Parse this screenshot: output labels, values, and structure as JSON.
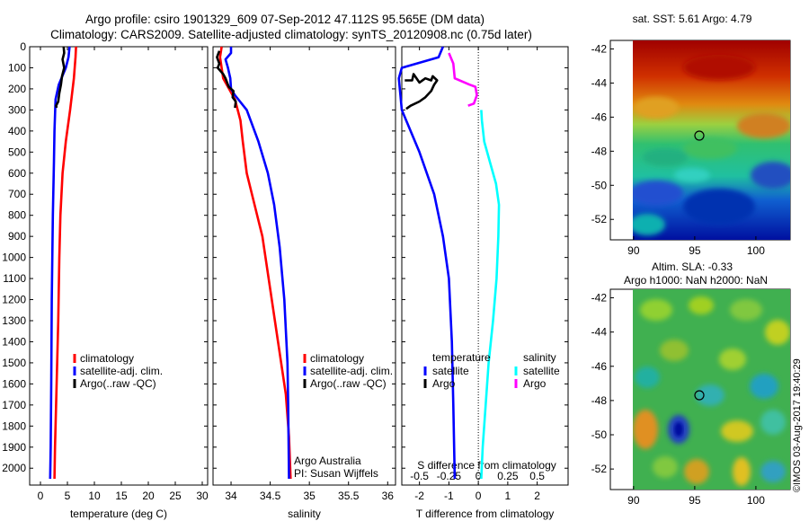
{
  "title_line1": "Argo profile: csiro 1901329_609 07-Sep-2012 47.112S 95.565E (DM data)",
  "title_line2": "Climatology: CARS2009. Satellite-adjusted climatology: synTS_20120908.nc (0.75d later)",
  "colors": {
    "climatology": "#ff0000",
    "satellite": "#0000ff",
    "argo": "#000000",
    "sat_salinity": "#00ffff",
    "argo_salinity": "#ff00ff"
  },
  "chart_data": [
    {
      "type": "line",
      "xlabel": "temperature (deg C)",
      "xticks": [
        "0",
        "5",
        "10",
        "15",
        "20",
        "25",
        "30"
      ],
      "xlim": [
        -2,
        31
      ],
      "ylim": [
        0,
        2080
      ],
      "yticks": [
        "0",
        "100",
        "200",
        "300",
        "400",
        "500",
        "600",
        "700",
        "800",
        "900",
        "1000",
        "1100",
        "1200",
        "1300",
        "1400",
        "1500",
        "1600",
        "1700",
        "1800",
        "1900",
        "2000"
      ],
      "legend": [
        {
          "label": "climatology",
          "color": "#ff0000"
        },
        {
          "label": "satellite-adj. clim.",
          "color": "#0000ff"
        },
        {
          "label": "Argo(..raw -QC)",
          "color": "#000000"
        }
      ],
      "series": [
        {
          "name": "climatology",
          "color": "#ff0000",
          "points": [
            [
              6.6,
              0
            ],
            [
              6.5,
              50
            ],
            [
              6.2,
              150
            ],
            [
              5.5,
              300
            ],
            [
              4.7,
              450
            ],
            [
              4.1,
              600
            ],
            [
              3.7,
              800
            ],
            [
              3.5,
              1000
            ],
            [
              3.3,
              1300
            ],
            [
              3.0,
              1600
            ],
            [
              2.7,
              1900
            ],
            [
              2.6,
              2050
            ]
          ]
        },
        {
          "name": "satellite-adj. clim.",
          "color": "#0000ff",
          "points": [
            [
              5.4,
              0
            ],
            [
              5.2,
              50
            ],
            [
              4.7,
              100
            ],
            [
              3.4,
              180
            ],
            [
              2.8,
              250
            ],
            [
              2.6,
              400
            ],
            [
              2.5,
              550
            ],
            [
              2.3,
              800
            ],
            [
              2.1,
              1200
            ],
            [
              2.0,
              1600
            ],
            [
              1.9,
              1900
            ],
            [
              1.8,
              2050
            ]
          ]
        },
        {
          "name": "Argo(..raw -QC)",
          "color": "#000000",
          "points": [
            [
              4.3,
              0
            ],
            [
              4.4,
              30
            ],
            [
              4.1,
              60
            ],
            [
              4.4,
              100
            ],
            [
              4.0,
              140
            ],
            [
              3.8,
              180
            ],
            [
              3.5,
              220
            ],
            [
              3.3,
              260
            ],
            [
              2.9,
              280
            ],
            [
              3.0,
              290
            ]
          ]
        }
      ]
    },
    {
      "type": "line",
      "xlabel": "salinity",
      "xticks": [
        "34",
        "34.5",
        "35",
        "35.5",
        "36"
      ],
      "xlim": [
        33.77,
        36.1
      ],
      "ylim": [
        0,
        2080
      ],
      "legend": [
        {
          "label": "climatology",
          "color": "#ff0000"
        },
        {
          "label": "satellite-adj. clim.",
          "color": "#0000ff"
        },
        {
          "label": "Argo(..raw -QC)",
          "color": "#000000"
        }
      ],
      "annotation_line1": "Argo Australia",
      "annotation_line2": "PI: Susan Wijffels",
      "series": [
        {
          "name": "climatology",
          "color": "#ff0000",
          "points": [
            [
              33.88,
              0
            ],
            [
              33.86,
              50
            ],
            [
              33.9,
              150
            ],
            [
              34.05,
              250
            ],
            [
              34.12,
              350
            ],
            [
              34.15,
              450
            ],
            [
              34.2,
              600
            ],
            [
              34.3,
              750
            ],
            [
              34.4,
              900
            ],
            [
              34.5,
              1150
            ],
            [
              34.6,
              1400
            ],
            [
              34.7,
              1650
            ],
            [
              34.74,
              1850
            ],
            [
              34.76,
              2050
            ]
          ]
        },
        {
          "name": "satellite-adj. clim.",
          "color": "#0000ff",
          "points": [
            [
              34.0,
              0
            ],
            [
              34.0,
              30
            ],
            [
              33.93,
              60
            ],
            [
              33.96,
              100
            ],
            [
              33.99,
              150
            ],
            [
              34.0,
              200
            ],
            [
              34.05,
              230
            ],
            [
              34.2,
              300
            ],
            [
              34.35,
              450
            ],
            [
              34.47,
              600
            ],
            [
              34.55,
              750
            ],
            [
              34.62,
              950
            ],
            [
              34.68,
              1200
            ],
            [
              34.72,
              1500
            ],
            [
              34.73,
              1700
            ],
            [
              34.74,
              2050
            ]
          ]
        },
        {
          "name": "Argo(..raw -QC)",
          "color": "#000000",
          "points": [
            [
              33.85,
              20
            ],
            [
              33.82,
              50
            ],
            [
              33.85,
              80
            ],
            [
              33.83,
              100
            ],
            [
              33.9,
              130
            ],
            [
              33.93,
              150
            ],
            [
              33.97,
              190
            ],
            [
              34.03,
              210
            ],
            [
              34.02,
              240
            ],
            [
              34.06,
              260
            ],
            [
              34.05,
              290
            ]
          ]
        }
      ]
    },
    {
      "type": "line",
      "legend_temp_title": "temperature",
      "legend_sal_title": "salinity",
      "legend": [
        {
          "label": "satellite",
          "color": "#0000ff"
        },
        {
          "label": "Argo",
          "color": "#000000"
        },
        {
          "label": "satellite",
          "color": "#00ffff"
        },
        {
          "label": "Argo",
          "color": "#ff00ff"
        }
      ],
      "xlabel": "T difference from climatology",
      "xticks": [
        "-2",
        "-1",
        "0",
        "1",
        "2"
      ],
      "xlim": [
        -2.6,
        3.05
      ],
      "s_axis_label": "S difference from climatology",
      "s_axis_ticks": [
        "-0.5",
        "-0.25",
        "0",
        "0.25",
        "0.5"
      ],
      "ylim": [
        0,
        2080
      ],
      "series": [
        {
          "name": "T satellite",
          "color": "#0000ff",
          "points": [
            [
              -1.2,
              0
            ],
            [
              -1.35,
              50
            ],
            [
              -2.6,
              100
            ],
            [
              -2.7,
              150
            ],
            [
              -2.6,
              300
            ],
            [
              -2.0,
              500
            ],
            [
              -1.5,
              700
            ],
            [
              -1.2,
              900
            ],
            [
              -1.0,
              1100
            ],
            [
              -0.9,
              1400
            ],
            [
              -0.85,
              1700
            ],
            [
              -0.8,
              2050
            ]
          ]
        },
        {
          "name": "T Argo",
          "color": "#000000",
          "points": [
            [
              -2.5,
              160
            ],
            [
              -2.25,
              160
            ],
            [
              -2.2,
              130
            ],
            [
              -2.0,
              170
            ],
            [
              -1.8,
              150
            ],
            [
              -1.6,
              160
            ],
            [
              -1.55,
              140
            ],
            [
              -1.4,
              160
            ],
            [
              -1.5,
              180
            ],
            [
              -1.6,
              210
            ],
            [
              -1.8,
              240
            ],
            [
              -2.0,
              260
            ],
            [
              -2.3,
              280
            ],
            [
              -2.45,
              295
            ]
          ]
        },
        {
          "name": "S satellite",
          "color": "#00ffff",
          "points": [
            [
              0.1,
              300
            ],
            [
              0.12,
              350
            ],
            [
              0.2,
              450
            ],
            [
              0.4,
              550
            ],
            [
              0.6,
              650
            ],
            [
              0.7,
              750
            ],
            [
              0.68,
              900
            ],
            [
              0.62,
              1100
            ],
            [
              0.5,
              1300
            ],
            [
              0.35,
              1500
            ],
            [
              0.25,
              1700
            ],
            [
              0.15,
              1900
            ],
            [
              0.1,
              2050
            ]
          ]
        },
        {
          "name": "S Argo",
          "color": "#ff00ff",
          "points": [
            [
              -1.0,
              30
            ],
            [
              -0.85,
              80
            ],
            [
              -0.8,
              150
            ],
            [
              -0.3,
              180
            ],
            [
              -0.1,
              190
            ],
            [
              -0.05,
              230
            ],
            [
              -0.15,
              270
            ],
            [
              -0.35,
              280
            ]
          ]
        }
      ]
    },
    {
      "type": "heatmap",
      "title": "sat. SST: 5.61  Argo: 4.79",
      "yticks": [
        "-42",
        "-44",
        "-46",
        "-48",
        "-50",
        "-52"
      ],
      "xticks": [
        "90",
        "95",
        "100"
      ],
      "marker": "○"
    },
    {
      "type": "heatmap",
      "title_line1": "Altim. SLA: -0.33",
      "title_line2": "Argo h1000: NaN h2000: NaN",
      "yticks": [
        "-42",
        "-44",
        "-46",
        "-48",
        "-50",
        "-52"
      ],
      "xticks": [
        "90",
        "95",
        "100"
      ],
      "marker": "○"
    }
  ],
  "watermark": "©IMOS 03-Aug-2017 19:40:29"
}
